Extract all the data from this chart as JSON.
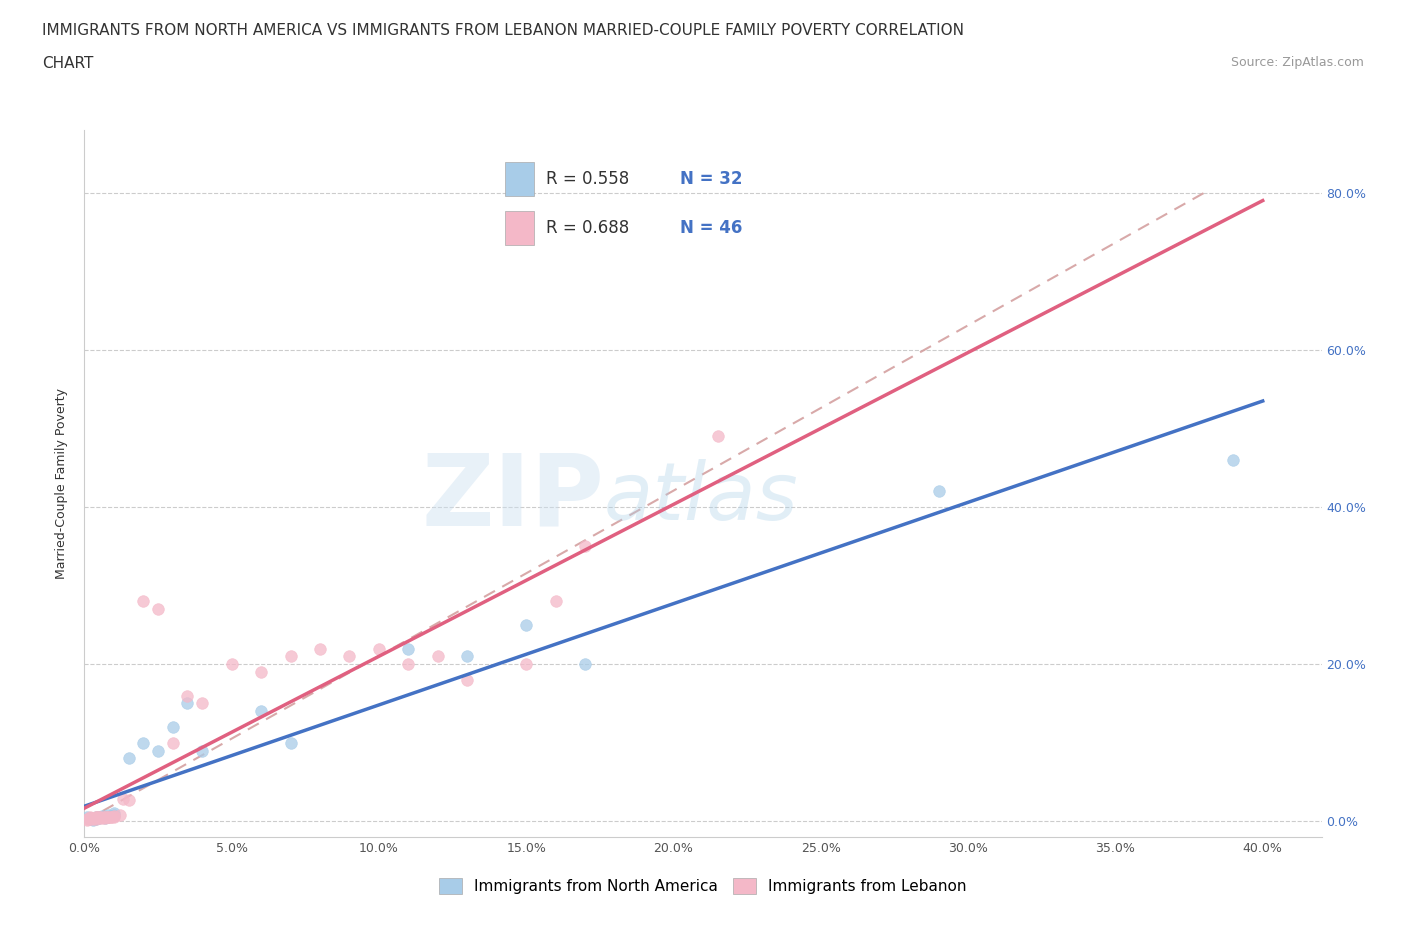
{
  "title_line1": "IMMIGRANTS FROM NORTH AMERICA VS IMMIGRANTS FROM LEBANON MARRIED-COUPLE FAMILY POVERTY CORRELATION",
  "title_line2": "CHART",
  "source": "Source: ZipAtlas.com",
  "ylabel": "Married-Couple Family Poverty",
  "R_blue": 0.558,
  "N_blue": 32,
  "R_pink": 0.688,
  "N_pink": 46,
  "blue_color": "#a8cce8",
  "pink_color": "#f4b8c8",
  "blue_line_color": "#4472c4",
  "pink_line_color": "#e06080",
  "dashed_line_color": "#ccaaaa",
  "legend_label_blue": "Immigrants from North America",
  "legend_label_pink": "Immigrants from Lebanon",
  "text_color_blue": "#4472c4",
  "text_color_dark": "#333333",
  "xlim": [
    0.0,
    0.42
  ],
  "ylim": [
    -0.02,
    0.88
  ],
  "xtick_vals": [
    0.0,
    0.05,
    0.1,
    0.15,
    0.2,
    0.25,
    0.3,
    0.35,
    0.4
  ],
  "ytick_vals": [
    0.0,
    0.2,
    0.4,
    0.6,
    0.8
  ],
  "title_fontsize": 11,
  "axis_label_fontsize": 9,
  "tick_fontsize": 9,
  "blue_x": [
    0.001,
    0.002,
    0.003,
    0.003,
    0.004,
    0.004,
    0.005,
    0.005,
    0.005,
    0.006,
    0.006,
    0.007,
    0.007,
    0.008,
    0.008,
    0.009,
    0.01,
    0.01,
    0.015,
    0.02,
    0.025,
    0.03,
    0.035,
    0.04,
    0.06,
    0.07,
    0.11,
    0.13,
    0.15,
    0.17,
    0.29,
    0.39
  ],
  "blue_y": [
    0.005,
    0.003,
    0.002,
    0.004,
    0.003,
    0.005,
    0.004,
    0.006,
    0.005,
    0.005,
    0.007,
    0.004,
    0.006,
    0.005,
    0.008,
    0.007,
    0.008,
    0.01,
    0.08,
    0.1,
    0.09,
    0.12,
    0.15,
    0.09,
    0.14,
    0.1,
    0.22,
    0.21,
    0.25,
    0.2,
    0.42,
    0.46
  ],
  "pink_x": [
    0.001,
    0.001,
    0.002,
    0.002,
    0.002,
    0.003,
    0.003,
    0.003,
    0.004,
    0.004,
    0.004,
    0.005,
    0.005,
    0.005,
    0.006,
    0.006,
    0.007,
    0.007,
    0.007,
    0.008,
    0.008,
    0.009,
    0.009,
    0.01,
    0.01,
    0.012,
    0.013,
    0.015,
    0.02,
    0.025,
    0.03,
    0.035,
    0.04,
    0.05,
    0.06,
    0.07,
    0.08,
    0.09,
    0.1,
    0.11,
    0.12,
    0.13,
    0.15,
    0.16,
    0.17,
    0.215
  ],
  "pink_y": [
    0.002,
    0.003,
    0.003,
    0.004,
    0.005,
    0.003,
    0.004,
    0.004,
    0.003,
    0.005,
    0.006,
    0.004,
    0.005,
    0.006,
    0.004,
    0.005,
    0.004,
    0.005,
    0.006,
    0.005,
    0.006,
    0.005,
    0.006,
    0.006,
    0.007,
    0.008,
    0.028,
    0.027,
    0.28,
    0.27,
    0.1,
    0.16,
    0.15,
    0.2,
    0.19,
    0.21,
    0.22,
    0.21,
    0.22,
    0.2,
    0.21,
    0.18,
    0.2,
    0.28,
    0.35,
    0.49
  ]
}
